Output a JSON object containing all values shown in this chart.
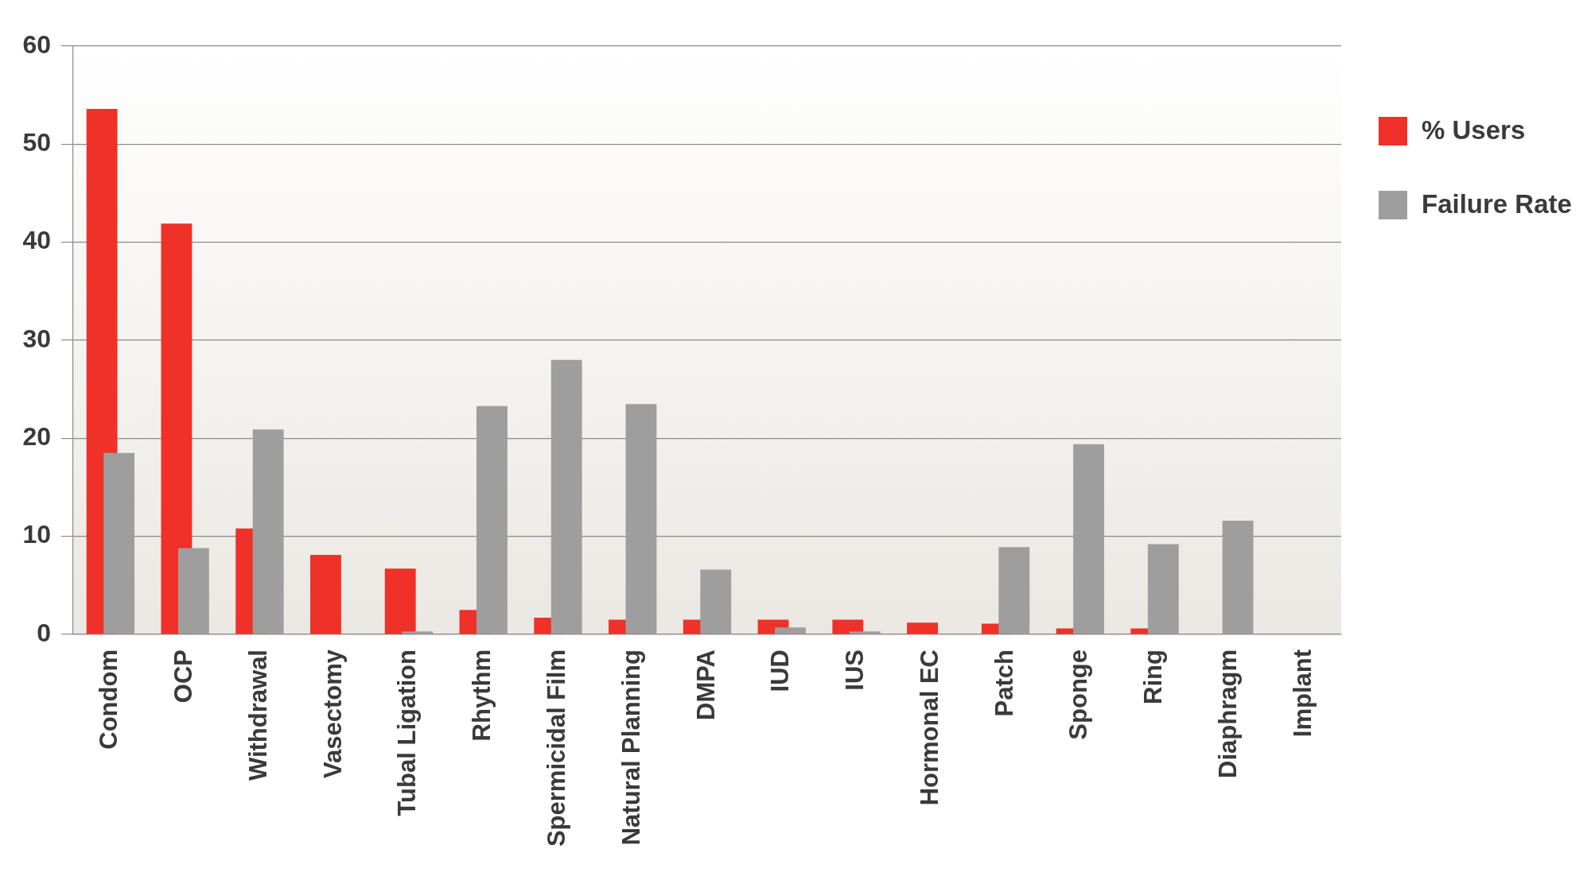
{
  "chart_data": {
    "type": "bar",
    "categories": [
      "Condom",
      "OCP",
      "Withdrawal",
      "Vasectomy",
      "Tubal Ligation",
      "Rhythm",
      "Spermicidal Film",
      "Natural Planning",
      "DMPA",
      "IUD",
      "IUS",
      "Hormonal EC",
      "Patch",
      "Sponge",
      "Ring",
      "Diaphragm",
      "Implant"
    ],
    "series": [
      {
        "name": "% Users",
        "color": "#ef3129",
        "values": [
          53.6,
          41.9,
          10.8,
          8.1,
          6.7,
          2.5,
          1.7,
          1.5,
          1.5,
          1.5,
          1.5,
          1.2,
          1.1,
          0.6,
          0.6,
          null,
          null
        ]
      },
      {
        "name": "Failure Rate",
        "color": "#9e9e9e",
        "values": [
          18.5,
          8.8,
          20.9,
          null,
          0.3,
          23.3,
          28.0,
          23.5,
          6.6,
          0.7,
          0.3,
          null,
          8.9,
          19.4,
          9.2,
          11.6,
          null
        ]
      }
    ],
    "ylim": [
      0,
      60
    ],
    "yticks": [
      0,
      10,
      20,
      30,
      40,
      50,
      60
    ],
    "grid": "y",
    "legend": "top right"
  }
}
